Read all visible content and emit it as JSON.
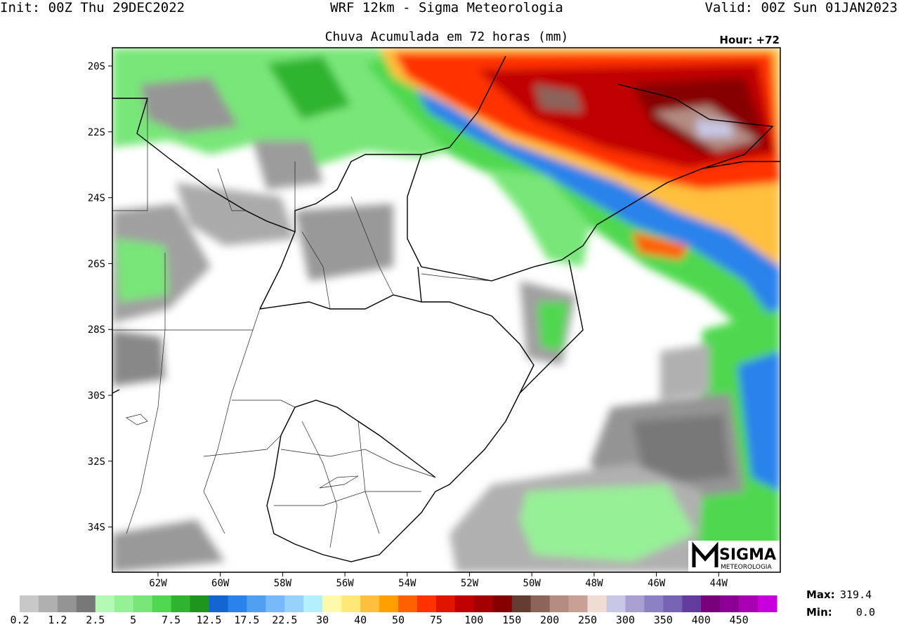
{
  "header": {
    "init": "Init: 00Z Thu 29DEC2022",
    "model": "WRF 12km - Sigma Meteorologia",
    "valid": "Valid: 00Z Sun 01JAN2023"
  },
  "map": {
    "title": "Chuva Acumulada em 72 horas (mm)",
    "hour": "Hour: +72",
    "lat_labels": [
      "20S",
      "22S",
      "24S",
      "26S",
      "28S",
      "30S",
      "32S",
      "34S"
    ],
    "lon_labels": [
      "62W",
      "60W",
      "58W",
      "56W",
      "54W",
      "52W",
      "50W",
      "48W",
      "46W",
      "44W"
    ],
    "logo": {
      "name": "SIGMA",
      "sub": "METEOROLOGIA"
    }
  },
  "colorbar": {
    "labels": [
      0.2,
      1.2,
      2.5,
      5,
      7.5,
      12.5,
      17.5,
      22.5,
      30,
      40,
      50,
      75,
      100,
      150,
      200,
      250,
      300,
      350,
      400,
      450
    ],
    "colors": [
      "#c8c8c8",
      "#b0b0b0",
      "#949494",
      "#787878",
      "#b4fab4",
      "#96f096",
      "#78e678",
      "#50d850",
      "#2eb42e",
      "#1e961e",
      "#1464d2",
      "#2a82eb",
      "#4fa0f0",
      "#78b9fa",
      "#96d2fa",
      "#b4f0fa",
      "#fffaaa",
      "#ffe878",
      "#ffc03c",
      "#ffa000",
      "#ff6000",
      "#ff3200",
      "#e11400",
      "#c00000",
      "#a50000",
      "#870000",
      "#643c32",
      "#8c645a",
      "#b48c82",
      "#c8a096",
      "#f0dcd2",
      "#c8c8e6",
      "#aaa0d2",
      "#8c82c3",
      "#7864b4",
      "#643ca0",
      "#780078",
      "#8c0096",
      "#aa00b4",
      "#c800dc"
    ]
  },
  "stats": {
    "max_label": "Max:",
    "max": 319.4,
    "min_label": "Min:",
    "min": "0.0"
  }
}
